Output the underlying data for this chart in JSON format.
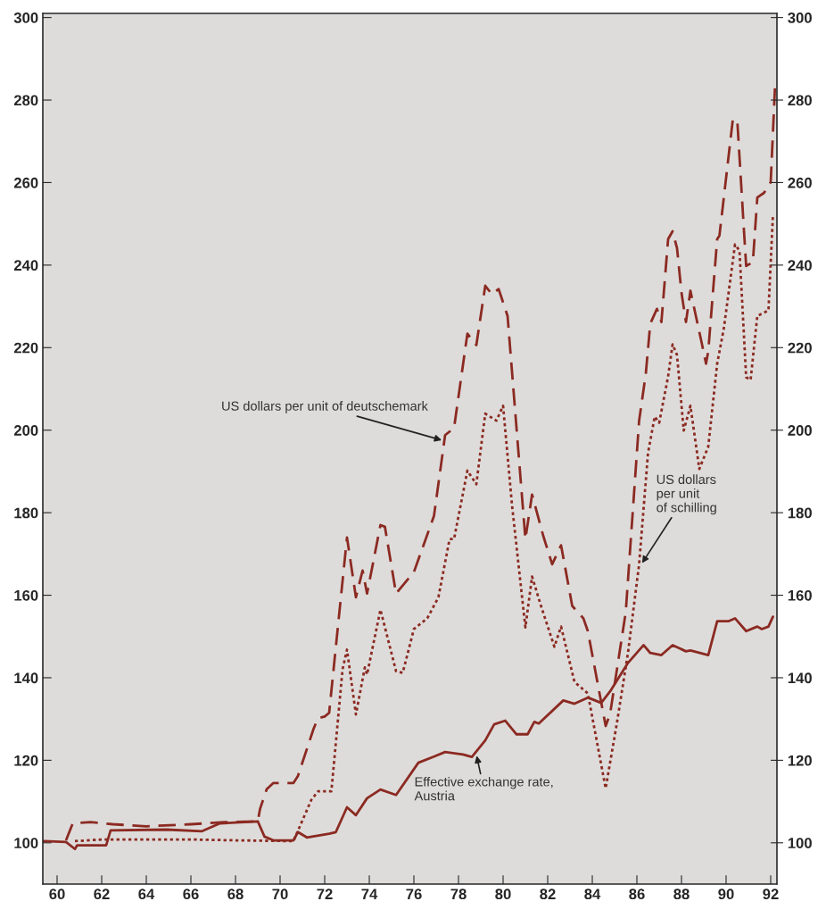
{
  "chart_data": {
    "type": "line",
    "xlim": [
      59.36,
      92.28
    ],
    "xticks": [
      60,
      62,
      64,
      66,
      68,
      70,
      72,
      74,
      76,
      78,
      80,
      82,
      84,
      86,
      88,
      90,
      92
    ],
    "ylim": [
      90,
      301
    ],
    "yticks": [
      100,
      120,
      140,
      160,
      180,
      200,
      220,
      240,
      260,
      280,
      300
    ],
    "y2lim": [
      90,
      301
    ],
    "y2ticks": [
      100,
      120,
      140,
      160,
      180,
      200,
      220,
      240,
      260,
      280,
      300
    ],
    "grid": false,
    "series": [
      {
        "color": "#8b2a22",
        "line_style": "dashed",
        "x": [
          60.4,
          60.7,
          61.5,
          62.5,
          64.0,
          66.0,
          67.5,
          69.0,
          69.1,
          69.4,
          69.7,
          70.6,
          70.8,
          71.5,
          71.7,
          72.0,
          72.2,
          73.0,
          73.4,
          73.7,
          73.9,
          74.5,
          74.7,
          75.2,
          76.0,
          76.9,
          77.4,
          77.8,
          78.4,
          78.8,
          79.2,
          79.5,
          79.8,
          80.2,
          81.0,
          81.3,
          81.8,
          82.2,
          82.6,
          83.1,
          83.6,
          83.8,
          84.6,
          84.8,
          85.5,
          86.1,
          86.4,
          86.6,
          86.9,
          87.1,
          87.4,
          87.6,
          87.8,
          88.0,
          88.2,
          88.4,
          88.9,
          89.1,
          89.2,
          89.6,
          89.7,
          90.3,
          90.5,
          90.8,
          90.9,
          91.2,
          91.4,
          91.7,
          92.0,
          92.2
        ],
        "values": [
          100.6,
          104.7,
          105,
          104.5,
          104,
          104.5,
          105,
          105.2,
          108.2,
          113,
          114.5,
          114.5,
          116.2,
          127.6,
          130.2,
          130.6,
          131.5,
          174,
          159.5,
          166,
          160.4,
          177,
          176.6,
          160.4,
          165.6,
          179.2,
          198.8,
          200.5,
          223.4,
          220.6,
          235,
          232.9,
          234.2,
          227.7,
          173.6,
          184.4,
          174.4,
          167.5,
          172.1,
          157.4,
          154.4,
          151.3,
          128.3,
          131.3,
          155.9,
          202.3,
          213.7,
          225.8,
          229.4,
          226.2,
          246.3,
          248.2,
          244.1,
          233.3,
          226.2,
          233.8,
          221.3,
          216.1,
          219.1,
          246.3,
          247.1,
          275.2,
          275.2,
          248.5,
          239.8,
          240.7,
          256.4,
          257.5,
          260.1,
          284
        ]
      },
      {
        "color": "#8b2a22",
        "line_style": "dotted",
        "x": [
          60.8,
          62.0,
          64.0,
          66.0,
          68.0,
          70.6,
          71.4,
          71.7,
          72.3,
          72.5,
          72.8,
          73.0,
          73.4,
          73.8,
          73.9,
          74.5,
          75.2,
          75.5,
          76.0,
          76.6,
          77.1,
          77.6,
          77.8,
          78.4,
          78.8,
          79.2,
          79.7,
          80.0,
          80.4,
          81.0,
          81.3,
          81.7,
          82.3,
          82.6,
          83.2,
          83.8,
          84.6,
          85.1,
          85.6,
          86.1,
          86.5,
          86.8,
          87.0,
          87.4,
          87.6,
          87.8,
          88.1,
          88.4,
          88.8,
          89.2,
          89.6,
          89.9,
          90.4,
          90.6,
          90.9,
          91.1,
          91.4,
          91.9,
          92.1
        ],
        "values": [
          100.4,
          100.8,
          100.8,
          100.8,
          100.6,
          100.4,
          110.4,
          112.5,
          112.5,
          124.2,
          142,
          146.8,
          131.1,
          142.5,
          140.8,
          156.5,
          141.6,
          141.2,
          151.8,
          154.4,
          159.5,
          173.6,
          173.6,
          190.2,
          186.9,
          204,
          202.3,
          205.9,
          181.8,
          152.2,
          164.5,
          157.4,
          147.5,
          152.4,
          139,
          136.2,
          113.2,
          128.9,
          146,
          167.5,
          194.5,
          203.3,
          201.8,
          213,
          220.8,
          218.2,
          199.9,
          205.9,
          190.6,
          196,
          216.1,
          224.7,
          245,
          243.5,
          212.8,
          212.2,
          227.7,
          229,
          252.1
        ]
      },
      {
        "color": "#8b2a22",
        "line_style": "solid",
        "x": [
          59.4,
          60.4,
          60.8,
          60.9,
          62.2,
          62.4,
          64.9,
          66.5,
          67.3,
          69.0,
          69.3,
          69.7,
          70.6,
          70.8,
          71.2,
          72.2,
          72.5,
          73.0,
          73.4,
          73.9,
          74.5,
          75.2,
          76.2,
          76.9,
          77.4,
          78.2,
          78.6,
          79.2,
          79.6,
          80.1,
          80.6,
          81.1,
          81.4,
          81.6,
          82.7,
          83.2,
          83.8,
          84.4,
          84.8,
          85.6,
          86.3,
          86.6,
          87.1,
          87.6,
          88.2,
          88.4,
          89.2,
          89.6,
          90.1,
          90.4,
          90.9,
          91.4,
          91.6,
          91.9,
          92.1
        ],
        "values": [
          100.4,
          100.2,
          98.5,
          99.4,
          99.4,
          103,
          103.2,
          102.8,
          104.7,
          105.2,
          101.5,
          100.6,
          100.6,
          102.6,
          101.3,
          102.2,
          102.6,
          108.6,
          106.7,
          110.8,
          112.9,
          111.6,
          119.4,
          120.9,
          122,
          121.4,
          120.8,
          124.8,
          128.7,
          129.6,
          126.3,
          126.3,
          129.3,
          128.9,
          134.5,
          133.7,
          135.2,
          133.9,
          136.7,
          143.6,
          147.9,
          146,
          145.5,
          147.9,
          146.4,
          146.6,
          145.5,
          153.7,
          153.7,
          154.4,
          151.3,
          152.4,
          151.8,
          152.4,
          154.8
        ]
      }
    ],
    "annotations": [
      {
        "text": "US dollars per unit of deutschemark",
        "x": 77.3,
        "y": 197.5
      },
      {
        "text": "US dollars\nper unit\nof schilling",
        "x": 86.2,
        "y": 167.5
      },
      {
        "text": "Effective exchange rate,\nAustria",
        "x": 78.8,
        "y": 121.4
      }
    ]
  }
}
